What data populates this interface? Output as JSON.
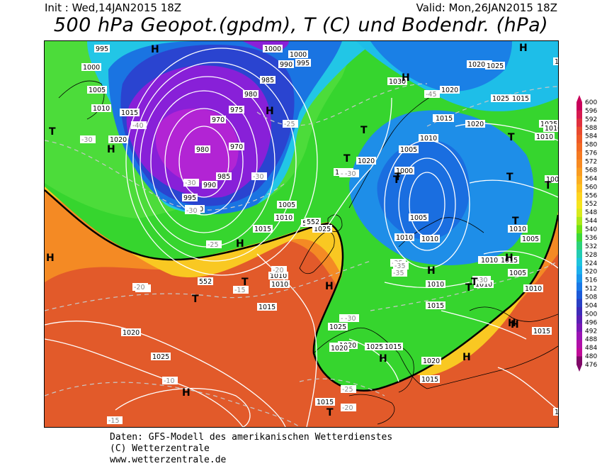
{
  "header": {
    "init": "Init : Wed,14JAN2015 18Z",
    "valid": "Valid: Mon,26JAN2015 18Z",
    "title": "500 hPa Geopot.(gpdm), T (C) und Bodendr. (hPa)"
  },
  "footer": {
    "line1": "Daten: GFS-Modell des amerikanischen Wetterdienstes",
    "line2": "(C) Wetterzentrale",
    "line3": "www.wetterzentrale.de"
  },
  "legend": {
    "values": [
      "600",
      "596",
      "592",
      "588",
      "584",
      "580",
      "576",
      "572",
      "568",
      "564",
      "560",
      "556",
      "552",
      "548",
      "544",
      "540",
      "536",
      "532",
      "528",
      "524",
      "520",
      "516",
      "512",
      "508",
      "504",
      "500",
      "496",
      "492",
      "488",
      "484",
      "480",
      "476"
    ],
    "colors": [
      "#c8005a",
      "#d61a50",
      "#e0303e",
      "#e84a30",
      "#ee5a28",
      "#f26a24",
      "#f57a22",
      "#f78a22",
      "#f99c22",
      "#fbae22",
      "#fdc220",
      "#fed520",
      "#f5e41e",
      "#d8ea1c",
      "#aae81a",
      "#6ee214",
      "#3cd838",
      "#2cd27a",
      "#22ccb2",
      "#1ec4dc",
      "#1cb0ec",
      "#1a96ec",
      "#1a78e6",
      "#1c5ad8",
      "#2a40c4",
      "#3e2cb8",
      "#5a20b4",
      "#7a18b4",
      "#9a14b4",
      "#b010a8",
      "#c00c98",
      "#800868"
    ]
  },
  "map": {
    "colors": {
      "red": "#e0502a",
      "orange": "#f27a24",
      "yellow": "#f9c722",
      "green": "#34d82c",
      "lightgreen": "#5ee048",
      "cyan": "#22cce8",
      "blue": "#1a8ce8",
      "deepblue": "#2840d4",
      "violet": "#8a20d8",
      "magenta": "#b024d8"
    },
    "pressure_labels": [
      "995",
      "1000",
      "1005",
      "1010",
      "1015",
      "1020",
      "1000",
      "1000",
      "995",
      "990",
      "985",
      "980",
      "975",
      "970",
      "970",
      "980",
      "985",
      "990",
      "995",
      "1000",
      "1005",
      "1010",
      "1015",
      "1020",
      "1025",
      "1010",
      "1010",
      "1015",
      "1020",
      "1025",
      "1030",
      "1025",
      "1020",
      "1015",
      "1010",
      "1005",
      "1000",
      "1010",
      "1015",
      "1020",
      "1025",
      "1015",
      "1010",
      "1005",
      "1010",
      "1015",
      "1020",
      "1025",
      "1015",
      "1010",
      "1015",
      "1020",
      "1010",
      "1005",
      "1010",
      "1015",
      "1025",
      "1020",
      "1015",
      "1010",
      "1005",
      "1000",
      "1025",
      "1020",
      "1015",
      "1010",
      "1010",
      "1025",
      "1020",
      "1020",
      "1015",
      "1005",
      "1010",
      "1010",
      "1015"
    ],
    "temp_labels": [
      "-30",
      "-30",
      "-30",
      "-35",
      "-30",
      "-40",
      "-30",
      "-35",
      "-25",
      "-30",
      "-45",
      "-30",
      "-20",
      "-25",
      "-15",
      "-20",
      "-25",
      "-30",
      "-20",
      "-10",
      "-15",
      "-35",
      "-30",
      "-20",
      "-25"
    ],
    "high_markers": [
      "H",
      "H",
      "H",
      "H",
      "H",
      "H",
      "H",
      "H",
      "H",
      "H",
      "H",
      "H",
      "H",
      "H",
      "H"
    ],
    "low_markers": [
      "T",
      "T",
      "T",
      "T",
      "T",
      "T",
      "T",
      "T",
      "T",
      "T",
      "T",
      "T",
      "T",
      "T"
    ],
    "gpdm_labels": [
      "552",
      "552",
      "552"
    ]
  }
}
